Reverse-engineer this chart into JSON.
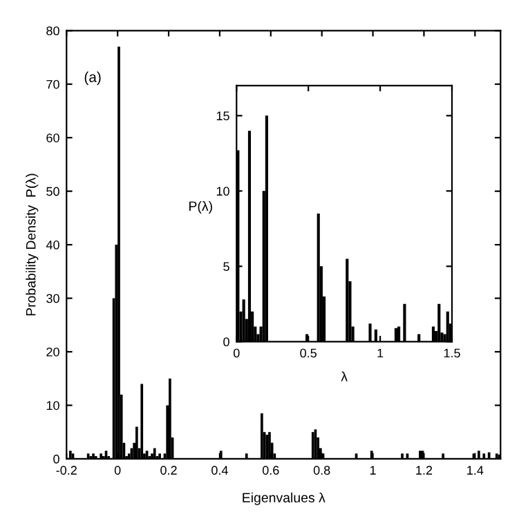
{
  "chart_data": [
    {
      "type": "histogram",
      "xlabel": "Eigenvalues λ",
      "ylabel": "Probability Density  P(λ)",
      "annotations": [
        "(a)"
      ],
      "color": "#000000",
      "bins": [
        -0.19,
        -0.18,
        -0.17,
        -0.12,
        -0.11,
        -0.1,
        -0.09,
        -0.08,
        -0.07,
        -0.06,
        -0.05,
        -0.04,
        -0.03,
        -0.02,
        -0.01,
        0,
        0.01,
        0.02,
        0.03,
        0.04,
        0.05,
        0.06,
        0.07,
        0.08,
        0.09,
        0.1,
        0.11,
        0.12,
        0.13,
        0.14,
        0.15,
        0.16,
        0.17,
        0.18,
        0.19,
        0.2,
        0.21,
        0.22,
        0.4,
        0.41,
        0.5,
        0.51,
        0.56,
        0.57,
        0.58,
        0.59,
        0.6,
        0.61,
        0.62,
        0.76,
        0.77,
        0.78,
        0.79,
        0.8,
        0.81,
        0.93,
        0.94,
        0.99,
        1,
        1.11,
        1.12,
        1.13,
        1.14,
        1.18,
        1.2,
        1.27,
        1.28,
        1.39,
        1.4,
        1.41,
        1.42,
        1.43,
        1.44,
        1.45,
        1.46,
        1.48,
        1.49,
        1.5
      ],
      "values": [
        1.5,
        1,
        0,
        1,
        0.5,
        1,
        0.5,
        0,
        1,
        0.5,
        1.5,
        0.5,
        0,
        30,
        40,
        77,
        12,
        3,
        0.5,
        1,
        2,
        3,
        6,
        2,
        14,
        1,
        1.5,
        0.5,
        1,
        2,
        0.5,
        1,
        0,
        1,
        10,
        15,
        4,
        0,
        1.5,
        0,
        1,
        0,
        8.5,
        5,
        4.5,
        5,
        3,
        1,
        0,
        5,
        5.5,
        4,
        2,
        1,
        0,
        1,
        0,
        1.5,
        0,
        1,
        0,
        1,
        0,
        1.5,
        0,
        1,
        0,
        1,
        0,
        1.5,
        0,
        1,
        0,
        1.2,
        0,
        1,
        0.8
      ],
      "xlim": [
        -0.2,
        1.5
      ],
      "ylim": [
        0,
        80
      ],
      "xticks": [
        {
          "value": -0.2,
          "label": "-0.2"
        },
        0,
        0.2,
        0.4,
        0.6,
        0.8,
        1,
        1.2,
        1.4
      ],
      "yticks": [
        0,
        10,
        20,
        30,
        40,
        50,
        60,
        70,
        80
      ]
    },
    {
      "type": "histogram",
      "xlabel": "λ",
      "ylabel": "P(λ)",
      "color": "#000000",
      "bins": [
        0,
        0.02,
        0.04,
        0.06,
        0.08,
        0.1,
        0.12,
        0.14,
        0.16,
        0.18,
        0.2,
        0.22,
        0.48,
        0.5,
        0.56,
        0.58,
        0.6,
        0.62,
        0.76,
        0.78,
        0.8,
        0.82,
        0.92,
        0.94,
        0.96,
        0.98,
        1.1,
        1.12,
        1.14,
        1.16,
        1.18,
        1.26,
        1.28,
        1.36,
        1.38,
        1.4,
        1.42,
        1.44,
        1.46,
        1.48,
        1.5
      ],
      "values": [
        12.7,
        2,
        2.8,
        1.5,
        14,
        2,
        1,
        0.5,
        1,
        10,
        15,
        0,
        0.5,
        0,
        8.5,
        5,
        3,
        0,
        5.5,
        4,
        1,
        0,
        1.2,
        0,
        0.8,
        0,
        0.9,
        1,
        0,
        2.5,
        0,
        0.5,
        0,
        1,
        0.7,
        2.5,
        0.6,
        0.5,
        2,
        1.2
      ],
      "xlim": [
        0,
        1.5
      ],
      "ylim": [
        0,
        17
      ],
      "xticks": [
        0,
        0.5,
        1,
        1.5
      ],
      "yticks": [
        0,
        5,
        10,
        15
      ]
    }
  ]
}
